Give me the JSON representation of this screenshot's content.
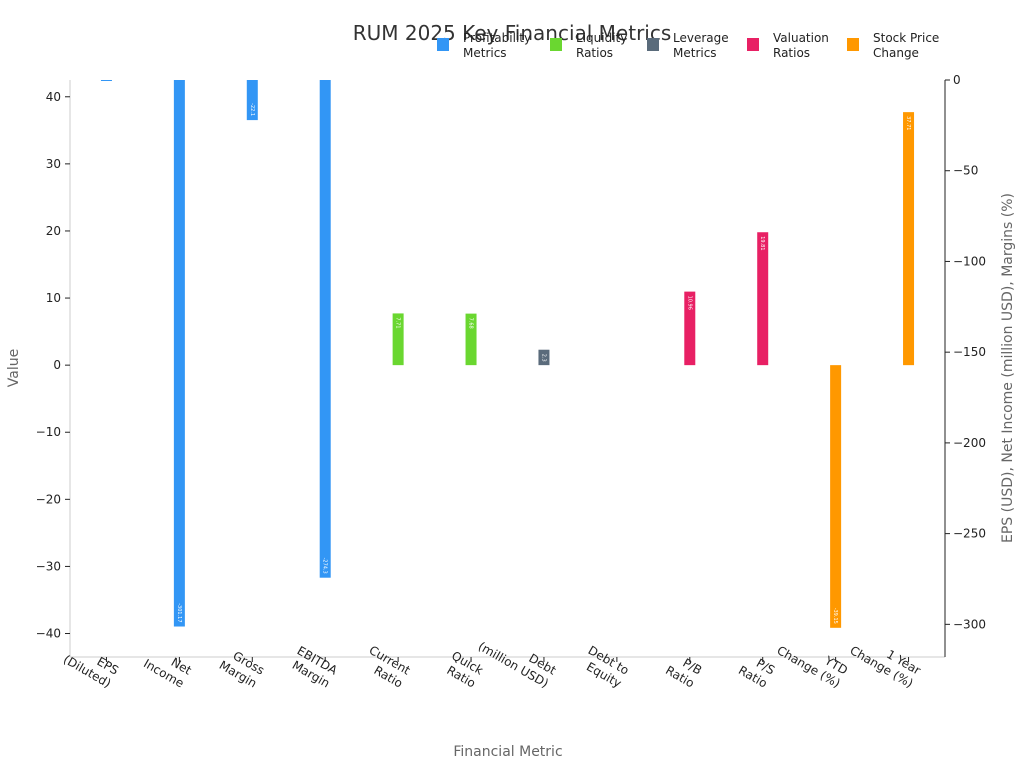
{
  "chart_data": {
    "type": "bar",
    "title": "RUM 2025 Key Financial Metrics",
    "xlabel": "Financial Metric",
    "ylabel": "Value",
    "y2label": "EPS (USD), Net Income (million USD), Margins (%)",
    "ylim": [
      -43.5,
      42.5
    ],
    "y2lim": [
      -318,
      0
    ],
    "yticks": [
      40,
      30,
      20,
      10,
      0,
      -10,
      -20,
      -30,
      -40
    ],
    "y2ticks": [
      0,
      -50,
      -100,
      -150,
      -200,
      -250,
      -300
    ],
    "grid": false,
    "legend_position": "top-right",
    "categories": [
      {
        "label": "EPS (Diluted)",
        "lines": [
          "EPS",
          "(Diluted)"
        ]
      },
      {
        "label": "Net Income",
        "lines": [
          "Net",
          "Income"
        ]
      },
      {
        "label": "Gross Margin",
        "lines": [
          "Gross",
          "Margin"
        ]
      },
      {
        "label": "EBITDA Margin",
        "lines": [
          "EBITDA",
          "Margin"
        ]
      },
      {
        "label": "Current Ratio",
        "lines": [
          "Current",
          "Ratio"
        ]
      },
      {
        "label": "Quick Ratio",
        "lines": [
          "Quick",
          "Ratio"
        ]
      },
      {
        "label": "Debt (million USD)",
        "lines": [
          "Debt",
          "(million USD)"
        ]
      },
      {
        "label": "Debt to Equity",
        "lines": [
          "Debt to",
          "Equity"
        ]
      },
      {
        "label": "P/B Ratio",
        "lines": [
          "P/B",
          "Ratio"
        ]
      },
      {
        "label": "P/S Ratio",
        "lines": [
          "P/S",
          "Ratio"
        ]
      },
      {
        "label": "YTD Change (%)",
        "lines": [
          "YTD",
          "Change (%)"
        ]
      },
      {
        "label": "1 Year Change (%)",
        "lines": [
          "1 Year",
          "Change (%)"
        ]
      }
    ],
    "series": [
      {
        "name": "Profitability Metrics",
        "lines": [
          "Profitability",
          "Metrics"
        ],
        "color": "#3296f5",
        "axis": "right",
        "points": [
          {
            "index": 0,
            "value": -0.5,
            "label": ""
          },
          {
            "index": 1,
            "value": -301.2,
            "label": "-301.17"
          },
          {
            "index": 2,
            "value": -22.1,
            "label": "-22.1"
          },
          {
            "index": 3,
            "value": -274.3,
            "label": "-274.3"
          }
        ]
      },
      {
        "name": "Liquidity Ratios",
        "lines": [
          "Liquidity",
          "Ratios"
        ],
        "color": "#6ad730",
        "axis": "left",
        "points": [
          {
            "index": 4,
            "value": 7.71,
            "label": "7.71"
          },
          {
            "index": 5,
            "value": 7.68,
            "label": "7.68"
          }
        ]
      },
      {
        "name": "Leverage Metrics",
        "lines": [
          "Leverage",
          "Metrics"
        ],
        "color": "#5a6b7b",
        "axis": "left",
        "points": [
          {
            "index": 6,
            "value": 2.3,
            "label": "2.3"
          },
          {
            "index": 7,
            "value": 0.0,
            "label": ""
          }
        ]
      },
      {
        "name": "Valuation Ratios",
        "lines": [
          "Valuation",
          "Ratios"
        ],
        "color": "#e82064",
        "axis": "left",
        "points": [
          {
            "index": 8,
            "value": 10.96,
            "label": "10.96"
          },
          {
            "index": 9,
            "value": 19.81,
            "label": "19.81"
          }
        ]
      },
      {
        "name": "Stock Price Change",
        "lines": [
          "Stock Price",
          "Change"
        ],
        "color": "#ff9800",
        "axis": "left",
        "points": [
          {
            "index": 10,
            "value": -39.15,
            "label": "-39.15"
          },
          {
            "index": 11,
            "value": 37.71,
            "label": "37.71"
          }
        ]
      }
    ]
  }
}
